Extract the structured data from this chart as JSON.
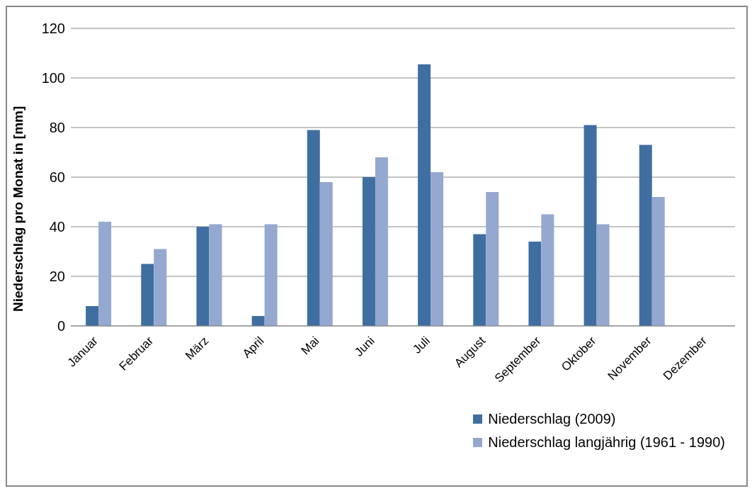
{
  "chart_data": {
    "type": "bar",
    "ylabel": "Niederschlag pro Monat in [mm]",
    "categories": [
      "Januar",
      "Februar",
      "März",
      "April",
      "Mai",
      "Juni",
      "Juli",
      "August",
      "September",
      "Oktober",
      "November",
      "Dezember"
    ],
    "series": [
      {
        "name": "Niederschlag (2009)",
        "color": "#3f6fa1",
        "values": [
          8,
          25,
          40,
          4,
          79,
          60,
          105.5,
          37,
          34,
          81,
          73,
          null
        ]
      },
      {
        "name": "Niederschlag langjährig (1961 - 1990)",
        "color": "#95a8cf",
        "values": [
          42,
          31,
          41,
          41,
          58,
          68,
          62,
          54,
          45,
          41,
          52,
          null
        ]
      }
    ],
    "ylim": [
      0,
      120
    ],
    "yticks": [
      0,
      20,
      40,
      60,
      80,
      100,
      120
    ],
    "grid": "y",
    "legend": "bottom right"
  }
}
